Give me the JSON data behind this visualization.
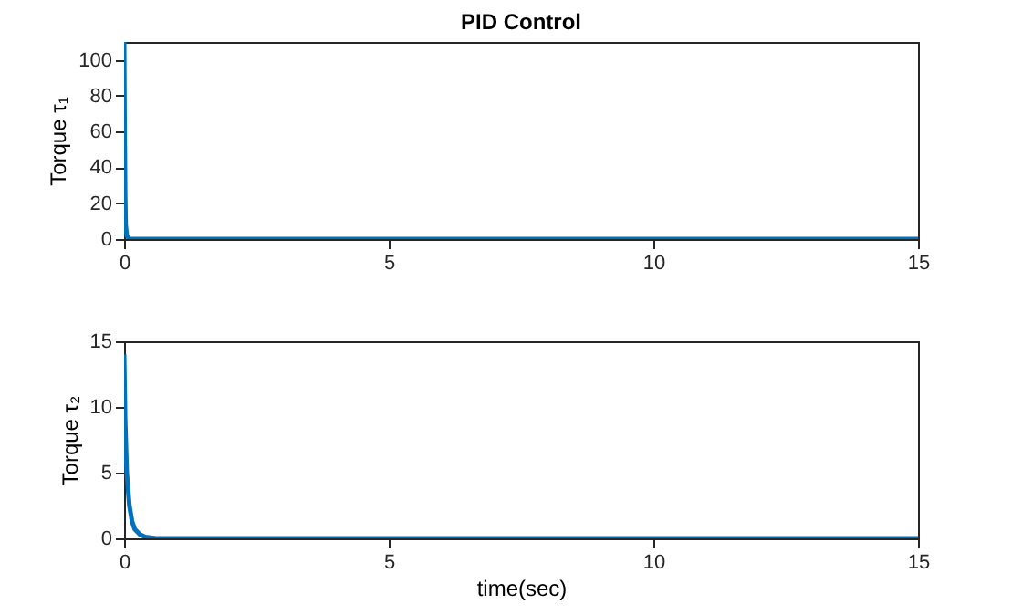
{
  "chart_data": [
    {
      "type": "line",
      "title": "PID Control",
      "ylabel": "Torque τ₁",
      "x": [
        0,
        0.01,
        0.02,
        0.03,
        0.05,
        0.1,
        0.2,
        0.5,
        1,
        15
      ],
      "series": [
        {
          "color": "#0072bd",
          "values": [
            110,
            60,
            25,
            8,
            2,
            0,
            0,
            0,
            0,
            0
          ]
        }
      ],
      "xlim": [
        0,
        15
      ],
      "xticks": [
        0,
        5,
        10,
        15
      ],
      "ylim": [
        0,
        110
      ],
      "yticks": [
        0,
        20,
        40,
        60,
        80,
        100
      ],
      "grid": false,
      "legend": false
    },
    {
      "type": "line",
      "xlabel": "time(sec)",
      "ylabel": "Torque τ₂",
      "x": [
        0,
        0.02,
        0.05,
        0.1,
        0.15,
        0.2,
        0.3,
        0.4,
        0.6,
        1,
        15
      ],
      "series": [
        {
          "color": "#0072bd",
          "values": [
            14,
            9,
            5,
            2.5,
            1.3,
            0.7,
            0.3,
            0.1,
            0,
            0,
            0
          ]
        }
      ],
      "xlim": [
        0,
        15
      ],
      "xticks": [
        0,
        5,
        10,
        15
      ],
      "ylim": [
        0,
        15
      ],
      "yticks": [
        0,
        5,
        10,
        15
      ],
      "grid": false,
      "legend": false
    }
  ]
}
